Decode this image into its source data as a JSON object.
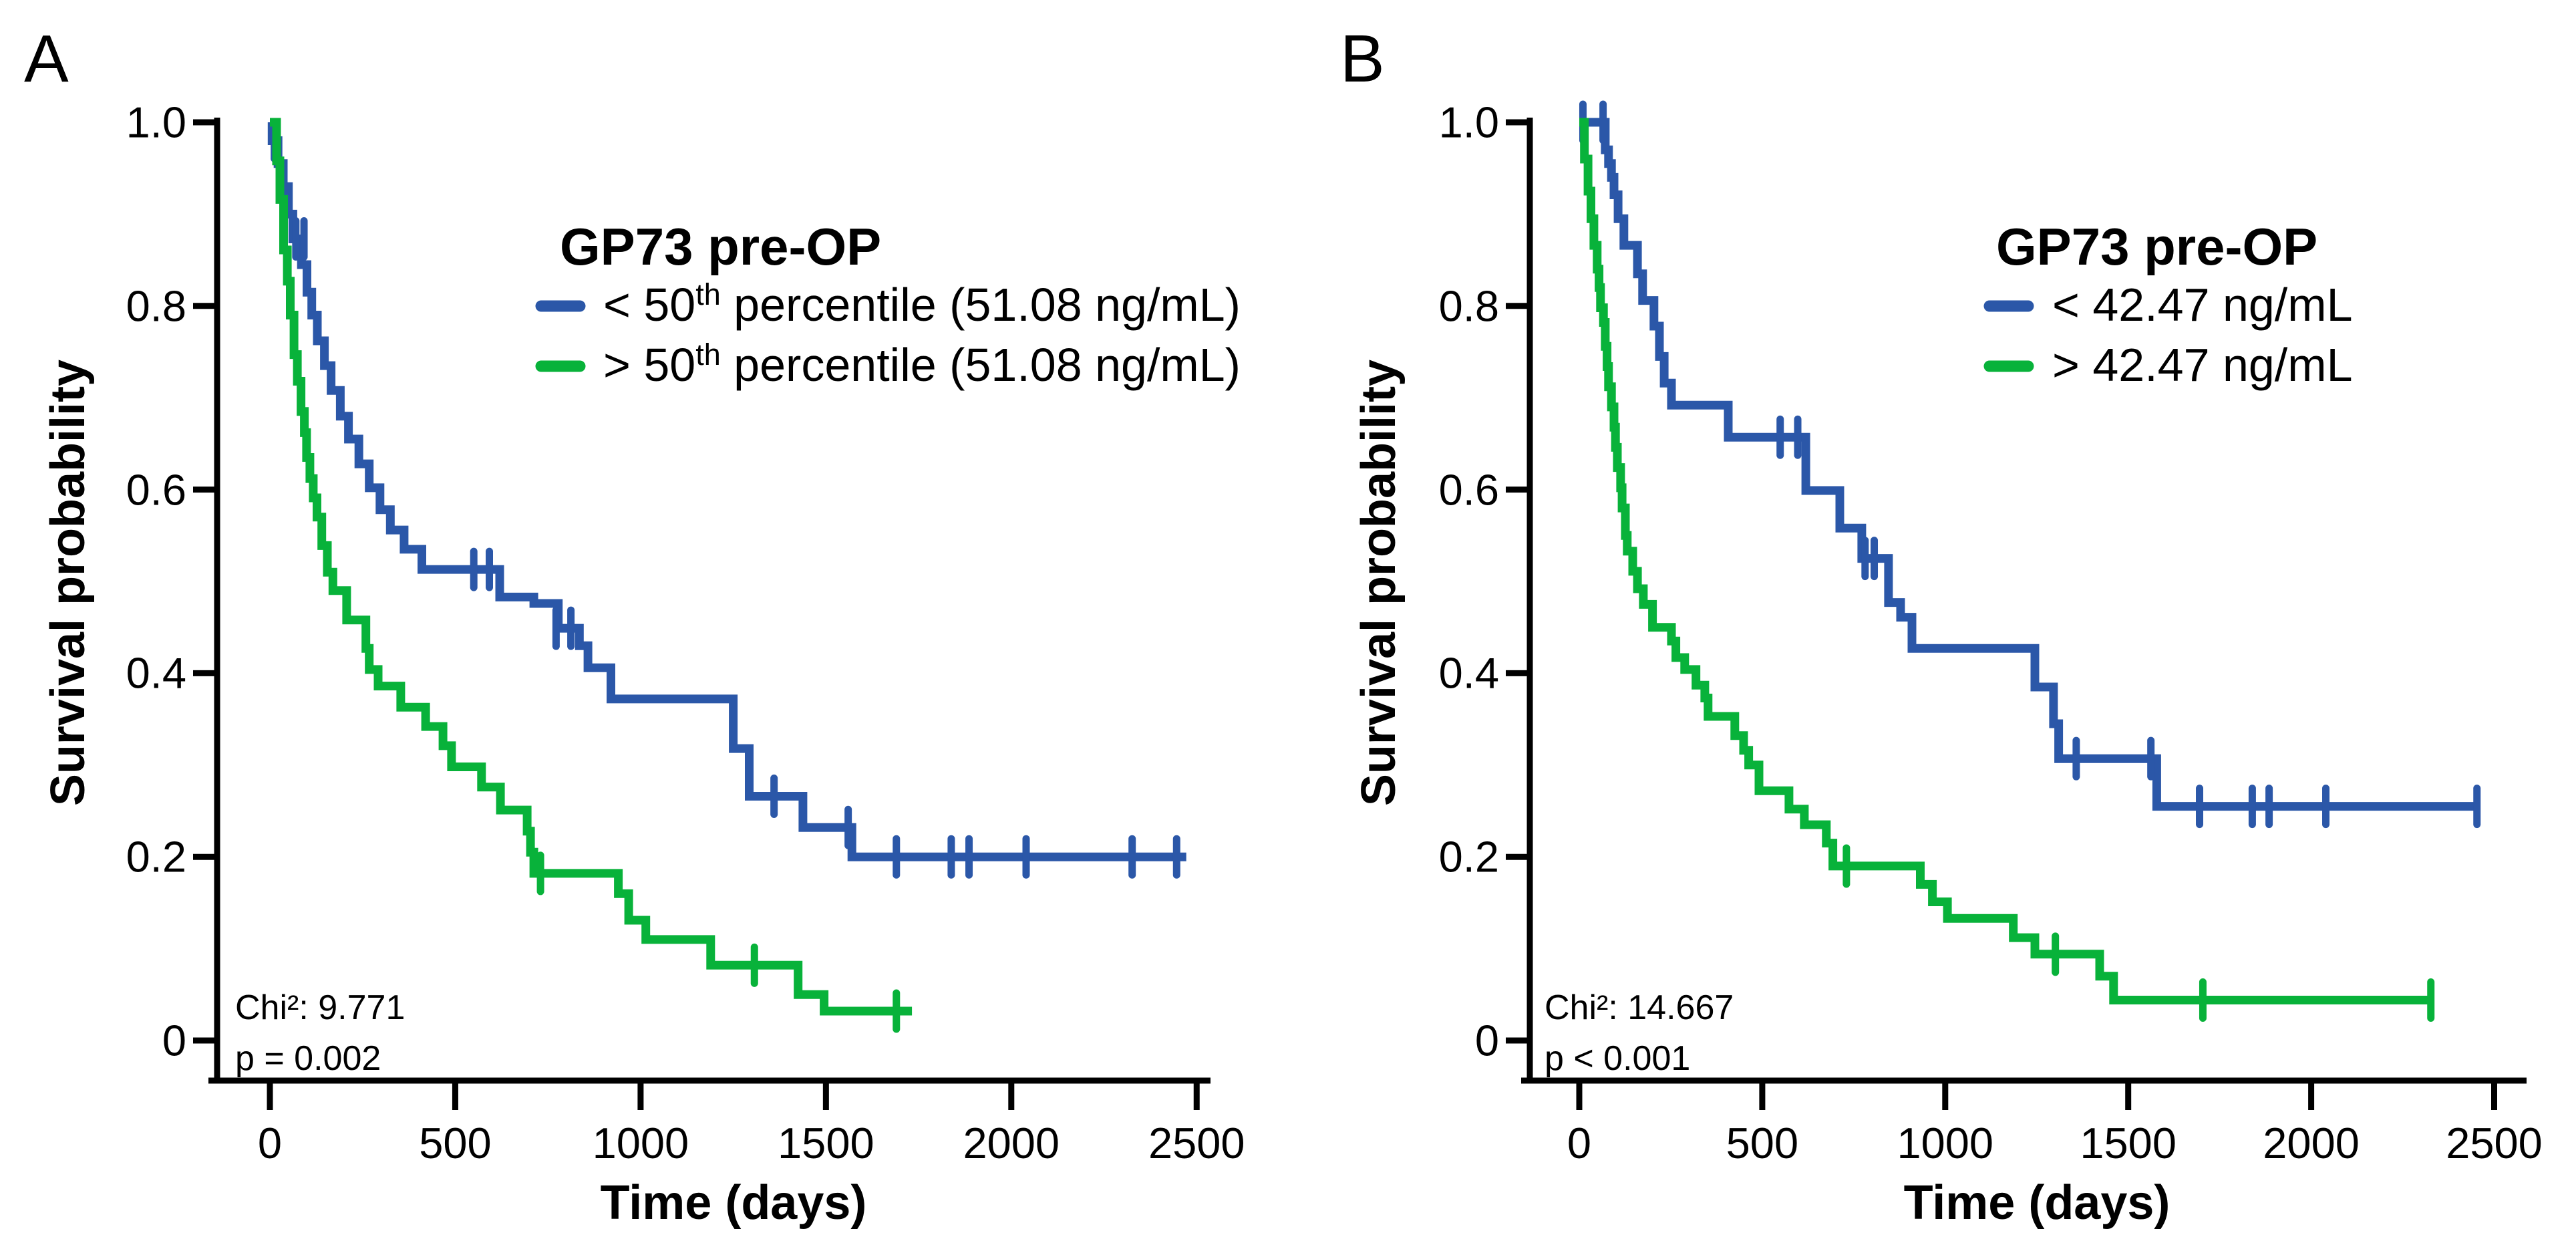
{
  "figure": {
    "background": "#ffffff",
    "colors": {
      "blue": "#2b57a8",
      "green": "#08b23a",
      "axis": "#000000"
    }
  },
  "chart_data": [
    {
      "type": "line",
      "subtype": "kaplan-meier-step",
      "panel_label": "A",
      "xlabel": "Time (days)",
      "ylabel": "Survival probability",
      "xlim": [
        0,
        2500
      ],
      "ylim": [
        0,
        1.0
      ],
      "grid": false,
      "legend_position": "upper right inside",
      "x_tick_values": [
        0,
        500,
        1000,
        1500,
        2000,
        2500
      ],
      "x_tick_labels": [
        "0",
        "500",
        "1000",
        "1500",
        "2000",
        "2500"
      ],
      "y_tick_values": [
        1.0,
        0.8,
        0.6,
        0.4,
        0.2,
        0
      ],
      "y_tick_labels": [
        "1.0",
        "0.8",
        "0.6",
        "0.4",
        "0.2",
        "0"
      ],
      "stats": {
        "chi2": "Chi²: 9.771",
        "p_value": "p = 0.002"
      },
      "legend_title": "GP73 pre-OP",
      "legend": [
        {
          "prefix": "< 50",
          "sup": "th",
          "suffix": " percentile (51.08 ng/mL)",
          "color": "#2b57a8"
        },
        {
          "prefix": "> 50",
          "sup": "th",
          "suffix": " percentile (51.08 ng/mL)",
          "color": "#08b23a"
        }
      ],
      "series": [
        {
          "name": "GP73 pre-OP < 50th percentile (51.08 ng/mL)",
          "color": "#2b57a8",
          "start": [
            0,
            1.0
          ],
          "end_time": 2472,
          "steps": [
            [
              6,
              0.98
            ],
            [
              22,
              0.955
            ],
            [
              36,
              0.93
            ],
            [
              50,
              0.9
            ],
            [
              62,
              0.873
            ],
            [
              85,
              0.845
            ],
            [
              100,
              0.815
            ],
            [
              113,
              0.79
            ],
            [
              128,
              0.762
            ],
            [
              147,
              0.735
            ],
            [
              165,
              0.708
            ],
            [
              190,
              0.68
            ],
            [
              212,
              0.655
            ],
            [
              240,
              0.628
            ],
            [
              268,
              0.602
            ],
            [
              297,
              0.578
            ],
            [
              325,
              0.556
            ],
            [
              362,
              0.535
            ],
            [
              410,
              0.513
            ],
            [
              620,
              0.483
            ],
            [
              712,
              0.476
            ],
            [
              778,
              0.449
            ],
            [
              835,
              0.43
            ],
            [
              858,
              0.406
            ],
            [
              920,
              0.372
            ],
            [
              1250,
              0.318
            ],
            [
              1293,
              0.266
            ],
            [
              1438,
              0.232
            ],
            [
              1570,
              0.2
            ]
          ],
          "censors": [
            [
              12,
              0.98
            ],
            [
              70,
              0.873
            ],
            [
              92,
              0.873
            ],
            [
              550,
              0.513
            ],
            [
              592,
              0.513
            ],
            [
              772,
              0.449
            ],
            [
              812,
              0.449
            ],
            [
              1360,
              0.266
            ],
            [
              1560,
              0.232
            ],
            [
              1690,
              0.2
            ],
            [
              1838,
              0.2
            ],
            [
              1886,
              0.2
            ],
            [
              2040,
              0.2
            ],
            [
              2326,
              0.2
            ],
            [
              2446,
              0.2
            ]
          ]
        },
        {
          "name": "GP73 pre-OP > 50th percentile (51.08 ng/mL)",
          "color": "#08b23a",
          "start": [
            0,
            1.0
          ],
          "end_time": 1732,
          "steps": [
            [
              18,
              0.958
            ],
            [
              27,
              0.916
            ],
            [
              37,
              0.861
            ],
            [
              47,
              0.827
            ],
            [
              55,
              0.79
            ],
            [
              65,
              0.747
            ],
            [
              74,
              0.718
            ],
            [
              84,
              0.685
            ],
            [
              93,
              0.662
            ],
            [
              99,
              0.635
            ],
            [
              108,
              0.612
            ],
            [
              117,
              0.591
            ],
            [
              127,
              0.57
            ],
            [
              140,
              0.539
            ],
            [
              155,
              0.51
            ],
            [
              170,
              0.49
            ],
            [
              207,
              0.458
            ],
            [
              259,
              0.427
            ],
            [
              268,
              0.404
            ],
            [
              292,
              0.386
            ],
            [
              353,
              0.363
            ],
            [
              420,
              0.342
            ],
            [
              467,
              0.321
            ],
            [
              490,
              0.298
            ],
            [
              571,
              0.276
            ],
            [
              622,
              0.251
            ],
            [
              694,
              0.228
            ],
            [
              703,
              0.205
            ],
            [
              712,
              0.182
            ],
            [
              940,
              0.16
            ],
            [
              968,
              0.131
            ],
            [
              1014,
              0.11
            ],
            [
              1189,
              0.082
            ],
            [
              1425,
              0.05
            ],
            [
              1495,
              0.032
            ]
          ],
          "censors": [
            [
              730,
              0.182
            ],
            [
              1307,
              0.082
            ],
            [
              1690,
              0.032
            ]
          ]
        }
      ]
    },
    {
      "type": "line",
      "subtype": "kaplan-meier-step",
      "panel_label": "B",
      "xlabel": "Time (days)",
      "ylabel": "Survival probability",
      "xlim": [
        0,
        2500
      ],
      "ylim": [
        0,
        1.0
      ],
      "grid": false,
      "legend_position": "upper right inside",
      "x_tick_values": [
        0,
        500,
        1000,
        1500,
        2000,
        2500
      ],
      "x_tick_labels": [
        "0",
        "500",
        "1000",
        "1500",
        "2000",
        "2500"
      ],
      "y_tick_values": [
        1.0,
        0.8,
        0.6,
        0.4,
        0.2,
        0
      ],
      "y_tick_labels": [
        "1.0",
        "0.8",
        "0.6",
        "0.4",
        "0.2",
        "0"
      ],
      "stats": {
        "chi2": "Chi²: 14.667",
        "p_value": "p < 0.001"
      },
      "legend_title": "GP73 pre-OP",
      "legend": [
        {
          "prefix": "< 42.47 ng/mL",
          "sup": "",
          "suffix": "",
          "color": "#2b57a8"
        },
        {
          "prefix": "> 42.47 ng/mL",
          "sup": "",
          "suffix": "",
          "color": "#08b23a"
        }
      ],
      "series": [
        {
          "name": "GP73 pre-OP < 42.47 ng/mL",
          "color": "#2b57a8",
          "start": [
            0,
            1.0
          ],
          "end_time": 2458,
          "steps": [
            [
              71,
              0.97
            ],
            [
              80,
              0.955
            ],
            [
              88,
              0.94
            ],
            [
              95,
              0.921
            ],
            [
              106,
              0.895
            ],
            [
              122,
              0.866
            ],
            [
              159,
              0.835
            ],
            [
              173,
              0.806
            ],
            [
              204,
              0.778
            ],
            [
              219,
              0.745
            ],
            [
              232,
              0.716
            ],
            [
              252,
              0.692
            ],
            [
              407,
              0.657
            ],
            [
              619,
              0.599
            ],
            [
              712,
              0.558
            ],
            [
              772,
              0.525
            ],
            [
              845,
              0.477
            ],
            [
              878,
              0.461
            ],
            [
              909,
              0.427
            ],
            [
              1245,
              0.385
            ],
            [
              1296,
              0.345
            ],
            [
              1310,
              0.307
            ],
            [
              1578,
              0.255
            ]
          ],
          "censors": [
            [
              10,
              1.0
            ],
            [
              65,
              1.0
            ],
            [
              549,
              0.657
            ],
            [
              597,
              0.657
            ],
            [
              781,
              0.525
            ],
            [
              806,
              0.525
            ],
            [
              1358,
              0.307
            ],
            [
              1562,
              0.307
            ],
            [
              1695,
              0.255
            ],
            [
              1839,
              0.255
            ],
            [
              1885,
              0.255
            ],
            [
              2040,
              0.255
            ],
            [
              2453,
              0.255
            ]
          ]
        },
        {
          "name": "GP73 pre-OP > 42.47 ng/mL",
          "color": "#08b23a",
          "start": [
            0,
            1.0
          ],
          "end_time": 2331,
          "steps": [
            [
              14,
              0.96
            ],
            [
              24,
              0.925
            ],
            [
              32,
              0.895
            ],
            [
              40,
              0.866
            ],
            [
              49,
              0.84
            ],
            [
              54,
              0.82
            ],
            [
              58,
              0.798
            ],
            [
              66,
              0.782
            ],
            [
              71,
              0.756
            ],
            [
              76,
              0.734
            ],
            [
              80,
              0.712
            ],
            [
              88,
              0.69
            ],
            [
              95,
              0.668
            ],
            [
              99,
              0.646
            ],
            [
              104,
              0.624
            ],
            [
              113,
              0.602
            ],
            [
              117,
              0.58
            ],
            [
              126,
              0.55
            ],
            [
              131,
              0.533
            ],
            [
              146,
              0.511
            ],
            [
              159,
              0.492
            ],
            [
              175,
              0.475
            ],
            [
              200,
              0.45
            ],
            [
              252,
              0.435
            ],
            [
              264,
              0.417
            ],
            [
              288,
              0.404
            ],
            [
              319,
              0.387
            ],
            [
              343,
              0.373
            ],
            [
              352,
              0.353
            ],
            [
              425,
              0.332
            ],
            [
              449,
              0.316
            ],
            [
              463,
              0.3
            ],
            [
              491,
              0.272
            ],
            [
              573,
              0.252
            ],
            [
              615,
              0.235
            ],
            [
              675,
              0.215
            ],
            [
              693,
              0.19
            ],
            [
              932,
              0.17
            ],
            [
              965,
              0.151
            ],
            [
              1006,
              0.133
            ],
            [
              1186,
              0.112
            ],
            [
              1245,
              0.094
            ],
            [
              1422,
              0.07
            ],
            [
              1460,
              0.044
            ]
          ],
          "censors": [
            [
              730,
              0.19
            ],
            [
              1301,
              0.094
            ],
            [
              1704,
              0.044
            ],
            [
              2327,
              0.044
            ]
          ]
        }
      ]
    }
  ]
}
